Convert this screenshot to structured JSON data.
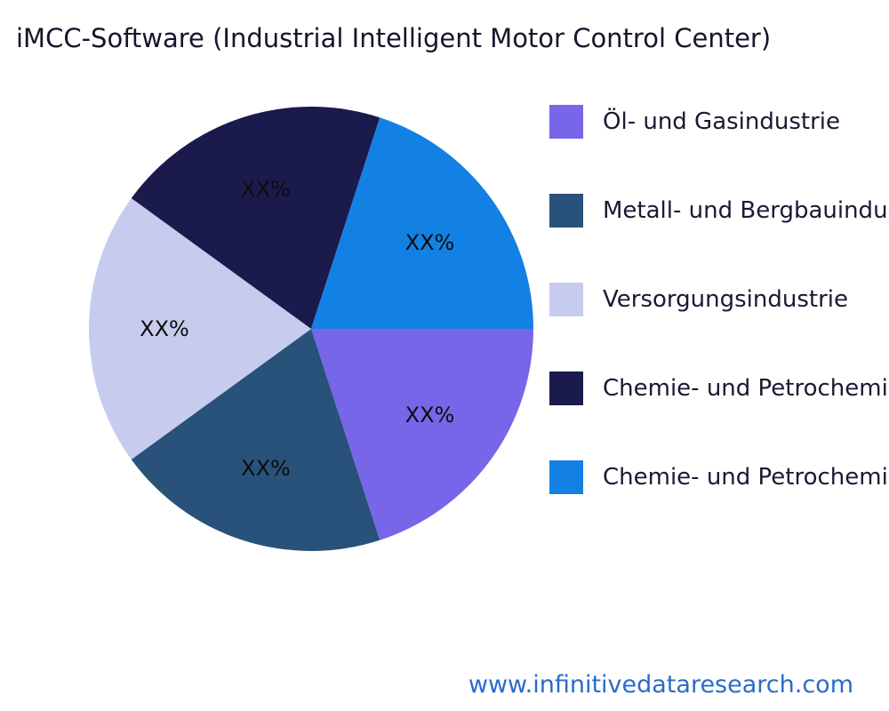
{
  "page": {
    "footer_link": "www.infinitivedataresearch.com"
  },
  "chart_data": {
    "type": "pie",
    "title": "iMCC-Software (Industrial Intelligent Motor Control Center)",
    "legend_position": "right",
    "start_angle_deg": 0,
    "direction": "clockwise",
    "slices": [
      {
        "label": "Öl- und Gasindustrie",
        "value": 20,
        "display_value": "XX%",
        "color": "#7766E8"
      },
      {
        "label": "Metall- und Bergbauindustrie",
        "value": 20,
        "display_value": "XX%",
        "color": "#29527A"
      },
      {
        "label": "Versorgungsindustrie",
        "value": 20,
        "display_value": "XX%",
        "color": "#C7CCEE"
      },
      {
        "label": "Chemie- und Petrochemieindustrie",
        "value": 20,
        "display_value": "XX%",
        "color": "#1B1A4D"
      },
      {
        "label": "Chemie- und Petrochemieindustrie",
        "value": 20,
        "display_value": "XX%",
        "color": "#1380E4"
      }
    ]
  }
}
